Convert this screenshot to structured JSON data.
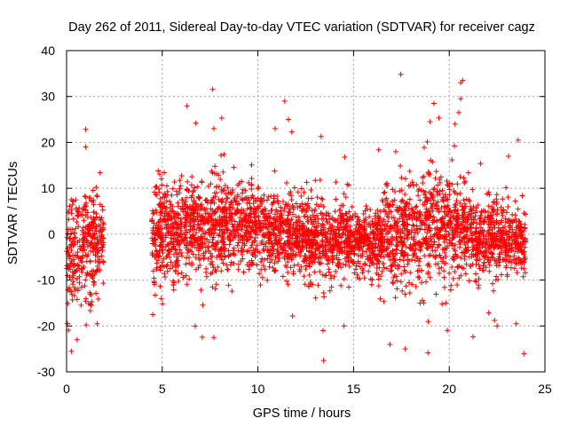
{
  "chart_data": {
    "type": "scatter",
    "title": "Day 262 of 2011, Sidereal Day-to-day VTEC variation (SDTVAR) for receiver cagz",
    "xlabel": "GPS time / hours",
    "ylabel": "SDTVAR / TECUs",
    "xlim": [
      0,
      25
    ],
    "ylim": [
      -30,
      40
    ],
    "xticks": [
      0,
      5,
      10,
      15,
      20,
      25
    ],
    "yticks": [
      -30,
      -20,
      -10,
      0,
      10,
      20,
      30,
      40
    ],
    "grid": true,
    "marker": "+",
    "color": "#ff0000",
    "series": [
      {
        "name": "SDTVAR",
        "density_envelope": [
          {
            "x": 0.0,
            "center": -4,
            "spread": 6
          },
          {
            "x": 0.5,
            "center": -5,
            "spread": 7
          },
          {
            "x": 1.0,
            "center": -3,
            "spread": 6
          },
          {
            "x": 1.5,
            "center": -2,
            "spread": 5
          },
          {
            "x": 1.9,
            "center": -1,
            "spread": 4
          },
          {
            "x": 4.6,
            "center": 0,
            "spread": 5
          },
          {
            "x": 6.0,
            "center": 1,
            "spread": 5
          },
          {
            "x": 8.0,
            "center": 2,
            "spread": 5
          },
          {
            "x": 10.0,
            "center": 1,
            "spread": 4
          },
          {
            "x": 12.0,
            "center": 0,
            "spread": 4
          },
          {
            "x": 13.5,
            "center": -2,
            "spread": 5
          },
          {
            "x": 15.0,
            "center": -1,
            "spread": 3
          },
          {
            "x": 16.0,
            "center": -2,
            "spread": 3
          },
          {
            "x": 17.0,
            "center": 0,
            "spread": 5
          },
          {
            "x": 18.5,
            "center": 1,
            "spread": 6
          },
          {
            "x": 19.5,
            "center": 3,
            "spread": 6
          },
          {
            "x": 20.5,
            "center": 0,
            "spread": 5
          },
          {
            "x": 22.0,
            "center": -1,
            "spread": 4
          },
          {
            "x": 24.0,
            "center": -2,
            "spread": 3
          }
        ],
        "gaps": [
          [
            1.95,
            4.45
          ]
        ],
        "outliers": [
          {
            "x": 0.25,
            "y": -25.5
          },
          {
            "x": 0.55,
            "y": -23
          },
          {
            "x": 1.0,
            "y": 19
          },
          {
            "x": 1.6,
            "y": -19.5
          },
          {
            "x": 4.5,
            "y": -17.5
          },
          {
            "x": 7.7,
            "y": -22.5
          },
          {
            "x": 7.7,
            "y": 23
          },
          {
            "x": 11.4,
            "y": 29
          },
          {
            "x": 11.6,
            "y": 25
          },
          {
            "x": 10.9,
            "y": 23
          },
          {
            "x": 13.4,
            "y": -21
          },
          {
            "x": 14.5,
            "y": -20
          },
          {
            "x": 16.9,
            "y": -24
          },
          {
            "x": 17.7,
            "y": -25
          },
          {
            "x": 19.2,
            "y": 28.5
          },
          {
            "x": 19.0,
            "y": 24.5
          },
          {
            "x": 20.6,
            "y": 33
          },
          {
            "x": 20.7,
            "y": 33.5
          },
          {
            "x": 20.6,
            "y": 29.5
          },
          {
            "x": 20.5,
            "y": 26.5
          },
          {
            "x": 20.3,
            "y": 24
          },
          {
            "x": 22.5,
            "y": -20
          },
          {
            "x": 23.6,
            "y": 20.5
          },
          {
            "x": 23.5,
            "y": -19.5
          },
          {
            "x": 23.9,
            "y": -26
          },
          {
            "x": 23.1,
            "y": 17
          }
        ]
      }
    ]
  }
}
